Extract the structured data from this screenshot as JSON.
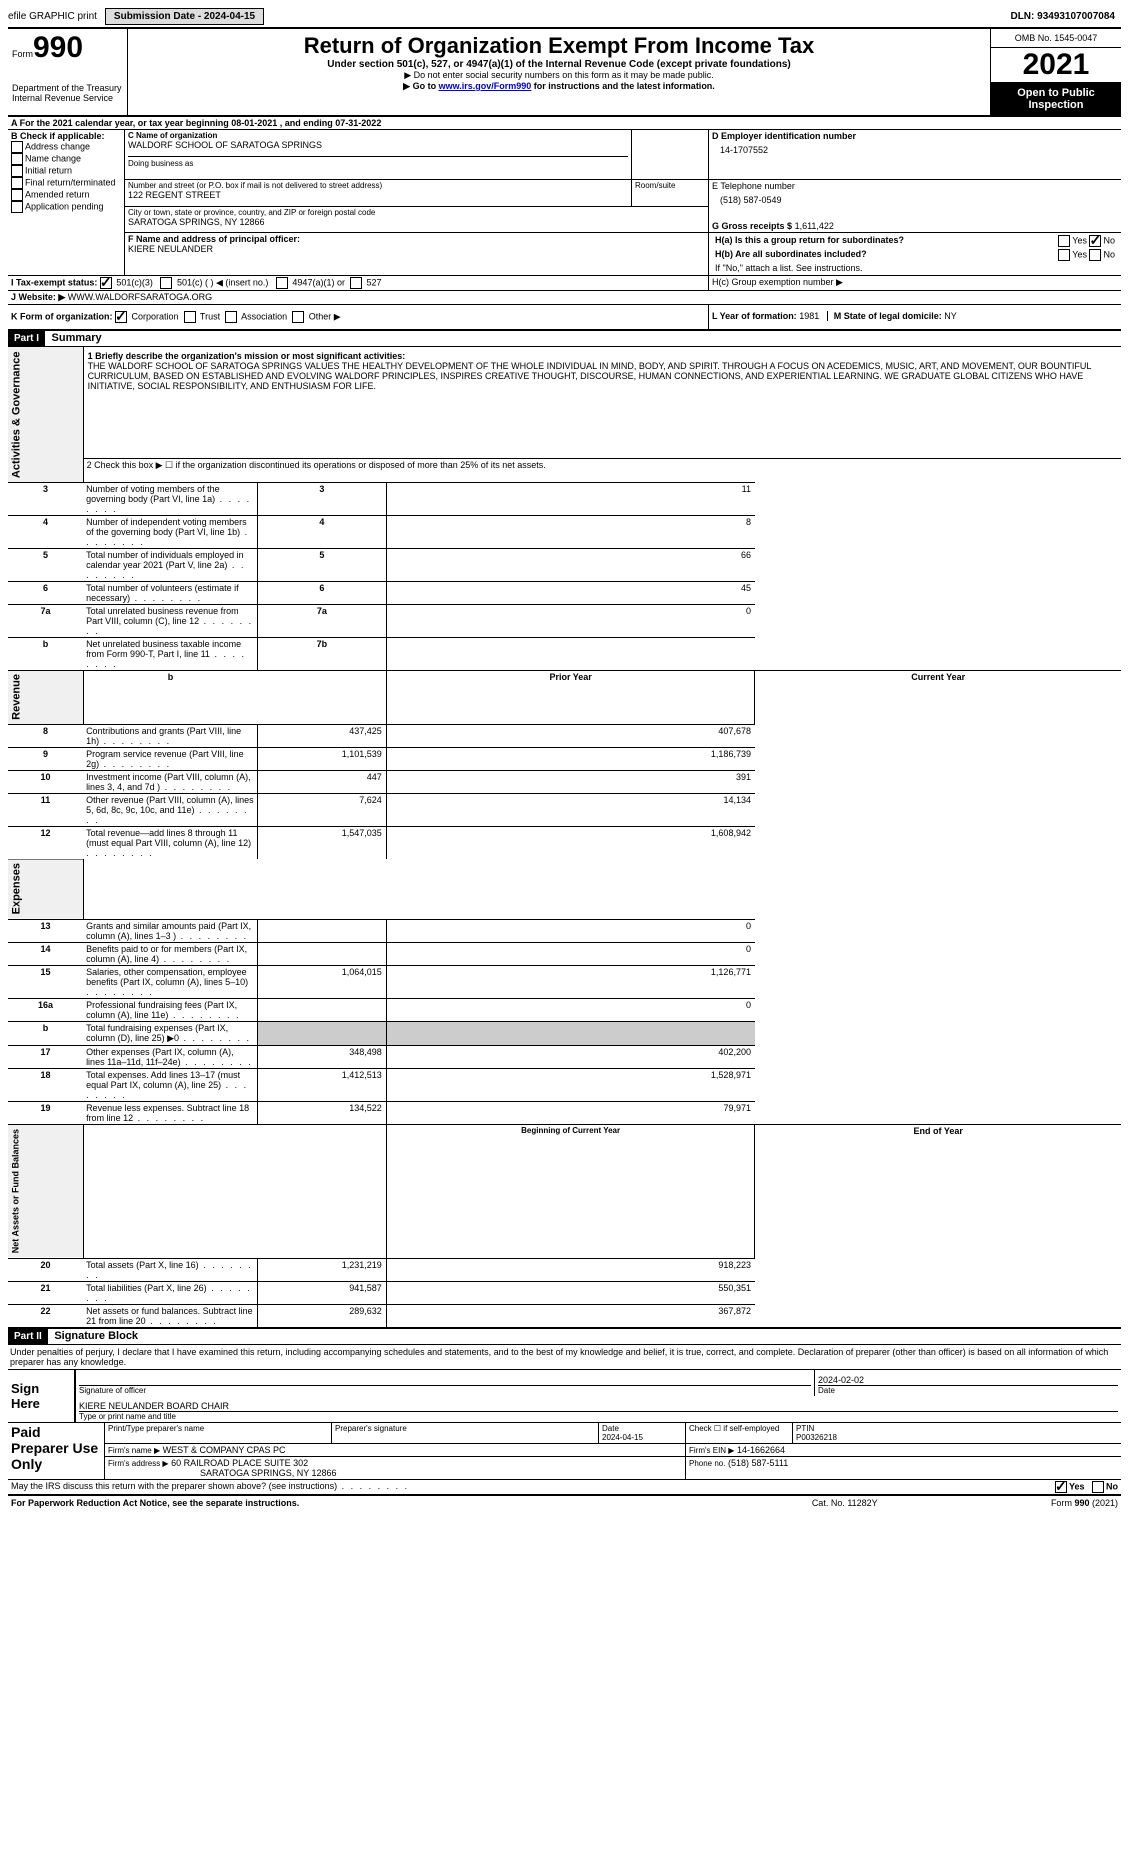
{
  "topbar": {
    "efile": "efile GRAPHIC print",
    "submission": "Submission Date - 2024-04-15",
    "dln": "DLN: 93493107007084"
  },
  "header": {
    "form_label": "Form",
    "form_no": "990",
    "dept": "Department of the Treasury",
    "irs": "Internal Revenue Service",
    "title": "Return of Organization Exempt From Income Tax",
    "subtitle": "Under section 501(c), 527, or 4947(a)(1) of the Internal Revenue Code (except private foundations)",
    "note1": "▶ Do not enter social security numbers on this form as it may be made public.",
    "note2_pre": "▶ Go to ",
    "note2_link": "www.irs.gov/Form990",
    "note2_post": " for instructions and the latest information.",
    "omb": "OMB No. 1545-0047",
    "year": "2021",
    "open": "Open to Public Inspection"
  },
  "sectionA": {
    "A": "A For the 2021 calendar year, or tax year beginning 08-01-2021    , and ending 07-31-2022",
    "B_label": "B Check if applicable:",
    "B_items": [
      "Address change",
      "Name change",
      "Initial return",
      "Final return/terminated",
      "Amended return",
      "Application pending"
    ],
    "C_name_label": "C Name of organization",
    "C_name": "WALDORF SCHOOL OF SARATOGA SPRINGS",
    "dba_label": "Doing business as",
    "addr_label": "Number and street (or P.O. box if mail is not delivered to street address)",
    "addr": "122 REGENT STREET",
    "room_label": "Room/suite",
    "city_label": "City or town, state or province, country, and ZIP or foreign postal code",
    "city": "SARATOGA SPRINGS, NY  12866",
    "D_label": "D Employer identification number",
    "D_val": "14-1707552",
    "E_label": "E Telephone number",
    "E_val": "(518) 587-0549",
    "G_label": "G Gross receipts $",
    "G_val": "1,611,422",
    "F_label": "F  Name and address of principal officer:",
    "F_val": "KIERE NEULANDER",
    "Ha": "H(a)  Is this a group return for subordinates?",
    "Hb": "H(b)  Are all subordinates included?",
    "H_note": "If \"No,\" attach a list. See instructions.",
    "Hc": "H(c)  Group exemption number ▶",
    "yes": "Yes",
    "no": "No",
    "I_label": "I    Tax-exempt status:",
    "I_501c3": "501(c)(3)",
    "I_501c": "501(c) (  ) ◀ (insert no.)",
    "I_4947": "4947(a)(1) or",
    "I_527": "527",
    "J_label": "J   Website: ▶",
    "J_val": "WWW.WALDORFSARATOGA.ORG",
    "K_label": "K Form of organization:",
    "K_corp": "Corporation",
    "K_trust": "Trust",
    "K_assoc": "Association",
    "K_other": "Other ▶",
    "L_label": "L Year of formation: ",
    "L_val": "1981",
    "M_label": "M State of legal domicile: ",
    "M_val": "NY"
  },
  "part1": {
    "header": "Part I",
    "title": "Summary",
    "line1_label": "1  Briefly describe the organization's mission or most significant activities:",
    "line1": "THE WALDORF SCHOOL OF SARATOGA SPRINGS VALUES THE HEALTHY DEVELOPMENT OF THE WHOLE INDIVIDUAL IN MIND, BODY, AND SPIRIT. THROUGH A FOCUS ON ACEDEMICS, MUSIC, ART, AND MOVEMENT, OUR BOUNTIFUL CURRICULUM, BASED ON ESTABLISHED AND EVOLVING WALDORF PRINCIPLES, INSPIRES CREATIVE THOUGHT, DISCOURSE, HUMAN CONNECTIONS, AND EXPERIENTIAL LEARNING. WE GRADUATE GLOBAL CITIZENS WHO HAVE INITIATIVE, SOCIAL RESPONSIBILITY, AND ENTHUSIASM FOR LIFE.",
    "line2": "2    Check this box ▶ ☐  if the organization discontinued its operations or disposed of more than 25% of its net assets.",
    "gov_label": "Activities & Governance",
    "rev_label": "Revenue",
    "exp_label": "Expenses",
    "net_label": "Net Assets or Fund Balances",
    "rows_gov": [
      {
        "n": "3",
        "txt": "Number of voting members of the governing body (Part VI, line 1a)",
        "box": "3",
        "val": "11"
      },
      {
        "n": "4",
        "txt": "Number of independent voting members of the governing body (Part VI, line 1b)",
        "box": "4",
        "val": "8"
      },
      {
        "n": "5",
        "txt": "Total number of individuals employed in calendar year 2021 (Part V, line 2a)",
        "box": "5",
        "val": "66"
      },
      {
        "n": "6",
        "txt": "Total number of volunteers (estimate if necessary)",
        "box": "6",
        "val": "45"
      },
      {
        "n": "7a",
        "txt": "Total unrelated business revenue from Part VIII, column (C), line 12",
        "box": "7a",
        "val": "0"
      },
      {
        "n": "b",
        "txt": "Net unrelated business taxable income from Form 990-T, Part I, line 11",
        "box": "7b",
        "val": ""
      }
    ],
    "col_prior": "Prior Year",
    "col_curr": "Current Year",
    "rows_rev": [
      {
        "n": "8",
        "txt": "Contributions and grants (Part VIII, line 1h)",
        "p": "437,425",
        "c": "407,678"
      },
      {
        "n": "9",
        "txt": "Program service revenue (Part VIII, line 2g)",
        "p": "1,101,539",
        "c": "1,186,739"
      },
      {
        "n": "10",
        "txt": "Investment income (Part VIII, column (A), lines 3, 4, and 7d )",
        "p": "447",
        "c": "391"
      },
      {
        "n": "11",
        "txt": "Other revenue (Part VIII, column (A), lines 5, 6d, 8c, 9c, 10c, and 11e)",
        "p": "7,624",
        "c": "14,134"
      },
      {
        "n": "12",
        "txt": "Total revenue—add lines 8 through 11 (must equal Part VIII, column (A), line 12)",
        "p": "1,547,035",
        "c": "1,608,942"
      }
    ],
    "rows_exp": [
      {
        "n": "13",
        "txt": "Grants and similar amounts paid (Part IX, column (A), lines 1–3 )",
        "p": "",
        "c": "0"
      },
      {
        "n": "14",
        "txt": "Benefits paid to or for members (Part IX, column (A), line 4)",
        "p": "",
        "c": "0"
      },
      {
        "n": "15",
        "txt": "Salaries, other compensation, employee benefits (Part IX, column (A), lines 5–10)",
        "p": "1,064,015",
        "c": "1,126,771"
      },
      {
        "n": "16a",
        "txt": "Professional fundraising fees (Part IX, column (A), line 11e)",
        "p": "",
        "c": "0"
      },
      {
        "n": "b",
        "txt": "Total fundraising expenses (Part IX, column (D), line 25) ▶0",
        "p": "shade",
        "c": "shade"
      },
      {
        "n": "17",
        "txt": "Other expenses (Part IX, column (A), lines 11a–11d, 11f–24e)",
        "p": "348,498",
        "c": "402,200"
      },
      {
        "n": "18",
        "txt": "Total expenses. Add lines 13–17 (must equal Part IX, column (A), line 25)",
        "p": "1,412,513",
        "c": "1,528,971"
      },
      {
        "n": "19",
        "txt": "Revenue less expenses. Subtract line 18 from line 12",
        "p": "134,522",
        "c": "79,971"
      }
    ],
    "col_beg": "Beginning of Current Year",
    "col_end": "End of Year",
    "rows_net": [
      {
        "n": "20",
        "txt": "Total assets (Part X, line 16)",
        "p": "1,231,219",
        "c": "918,223"
      },
      {
        "n": "21",
        "txt": "Total liabilities (Part X, line 26)",
        "p": "941,587",
        "c": "550,351"
      },
      {
        "n": "22",
        "txt": "Net assets or fund balances. Subtract line 21 from line 20",
        "p": "289,632",
        "c": "367,872"
      }
    ]
  },
  "part2": {
    "header": "Part II",
    "title": "Signature Block",
    "decl": "Under penalties of perjury, I declare that I have examined this return, including accompanying schedules and statements, and to the best of my knowledge and belief, it is true, correct, and complete. Declaration of preparer (other than officer) is based on all information of which preparer has any knowledge.",
    "sign_here": "Sign Here",
    "sig_officer": "Signature of officer",
    "sig_date_lbl": "Date",
    "sig_date": "2024-02-02",
    "sig_name": "KIERE NEULANDER  BOARD CHAIR",
    "sig_name_lbl": "Type or print name and title",
    "paid": "Paid Preparer Use Only",
    "prep_name_lbl": "Print/Type preparer's name",
    "prep_sig_lbl": "Preparer's signature",
    "prep_date_lbl": "Date",
    "prep_date": "2024-04-15",
    "self_lbl": "Check ☐ if self-employed",
    "ptin_lbl": "PTIN",
    "ptin": "P00326218",
    "firm_name_lbl": "Firm's name   ▶",
    "firm_name": "WEST & COMPANY CPAS PC",
    "firm_ein_lbl": "Firm's EIN ▶",
    "firm_ein": "14-1662664",
    "firm_addr_lbl": "Firm's address ▶",
    "firm_addr1": "60 RAILROAD PLACE SUITE 302",
    "firm_addr2": "SARATOGA SPRINGS, NY  12866",
    "phone_lbl": "Phone no.",
    "phone": "(518) 587-5111",
    "discuss": "May the IRS discuss this return with the preparer shown above? (see instructions)"
  },
  "footer": {
    "paperwork": "For Paperwork Reduction Act Notice, see the separate instructions.",
    "cat": "Cat. No. 11282Y",
    "form": "Form 990 (2021)"
  }
}
